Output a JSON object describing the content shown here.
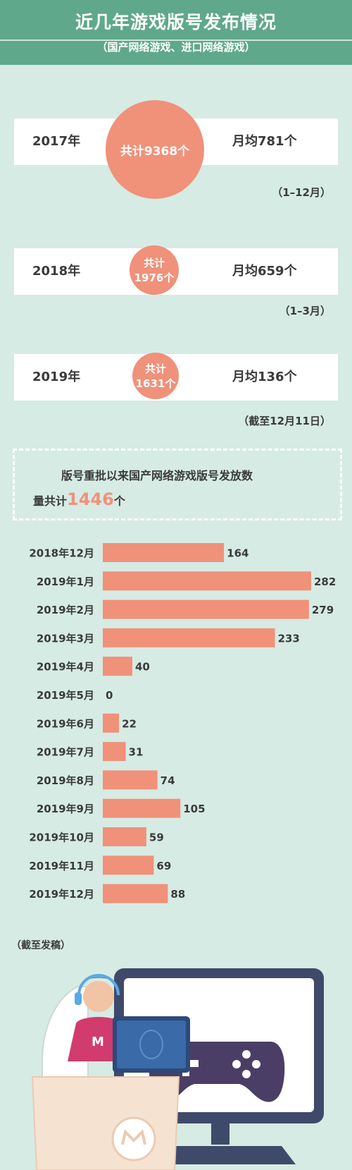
{
  "header": {
    "title": "近几年游戏版号发布情况",
    "subtitle": "（国产网络游戏、进口网络游戏）"
  },
  "years": [
    {
      "year": "2017年",
      "total_label": "共计9368个",
      "avg": "月均781个",
      "period": "（1–12月）"
    },
    {
      "year": "2018年",
      "total_label1": "共计",
      "total_label2": "1976个",
      "avg": "月均659个",
      "period": "（1–3月）"
    },
    {
      "year": "2019年",
      "total_label1": "共计",
      "total_label2": "1631个",
      "avg": "月均136个",
      "period": "（截至12月11日）"
    }
  ],
  "summary": {
    "line1": "版号重批以来国产网络游戏版号发放数",
    "line2_prefix": "量共计",
    "count": "1446",
    "line2_suffix": "个"
  },
  "chart_data": {
    "type": "bar",
    "orientation": "horizontal",
    "categories": [
      "2018年12月",
      "2019年1月",
      "2019年2月",
      "2019年3月",
      "2019年4月",
      "2019年5月",
      "2019年6月",
      "2019年7月",
      "2019年8月",
      "2019年9月",
      "2019年10月",
      "2019年11月",
      "2019年12月"
    ],
    "values": [
      164,
      282,
      279,
      233,
      40,
      0,
      22,
      31,
      74,
      105,
      59,
      69,
      88
    ],
    "xlim": [
      0,
      282
    ],
    "bar_color": "#f0917a"
  },
  "footnote": "（截至发稿）",
  "colors": {
    "header": "#5fa88b",
    "background": "#d6ebe4",
    "accent": "#f0917a"
  }
}
